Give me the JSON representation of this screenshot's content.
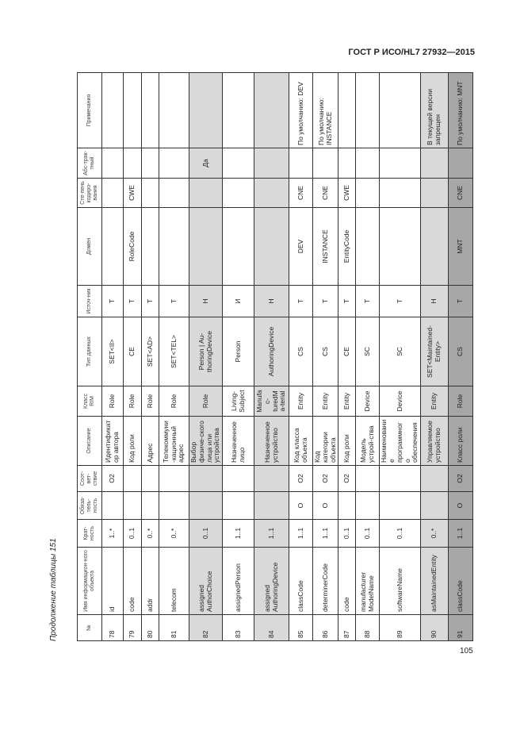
{
  "header": {
    "title": "ГОСТ Р ИСО/HL7 27932—2015"
  },
  "caption": "Продолжение таблицы 151",
  "table": {
    "columns": [
      "№",
      "Имя информацион-ного объекта",
      "Крат-ность",
      "Обяза-тель-ность",
      "Соот-вет-ствие",
      "Описание",
      "Класс RIM",
      "Тип данных",
      "Источ-ник",
      "Домен",
      "Сте-пень кодиро-вания",
      "Абс-трак-тный",
      "Примечания"
    ],
    "rows": [
      [
        "78",
        "id",
        "1..*",
        null,
        "O2",
        "Идентификатор автора",
        "Role",
        "SET<II>",
        "Т",
        null,
        null,
        null,
        null
      ],
      [
        "79",
        "code",
        "0..1",
        null,
        null,
        "Код роли",
        "Role",
        "CE",
        "Т",
        "RoleCode",
        "CWE",
        null,
        null
      ],
      [
        "80",
        "addr",
        "0..*",
        null,
        null,
        "Адрес",
        "Role",
        "SET<AD>",
        "Т",
        null,
        null,
        null,
        null
      ],
      [
        "81",
        "telecom",
        "0..*",
        null,
        null,
        "Телекоммуни-кационный адрес",
        "Role",
        "SET<TEL>",
        "Т",
        null,
        null,
        null,
        null
      ],
      [
        "82",
        "assigned AuthorChoice",
        "0..1",
        null,
        null,
        "Выбор физиче-ского лица или устройства",
        "Role",
        "Person | Au-thoringDevice",
        "Н",
        null,
        null,
        "Да",
        null
      ],
      [
        "83",
        "assignedPerson",
        "1..1",
        null,
        null,
        "Назначенное лицо",
        "Living-Subject",
        "Person",
        "И",
        null,
        null,
        null,
        null
      ],
      [
        "84",
        "assigned AuthoringDevice",
        "1..1",
        null,
        null,
        "Назначенное устройство",
        "Manufac-turedMa-terial",
        "AuthoringDevice",
        "Н",
        null,
        null,
        null,
        null
      ],
      [
        "85",
        "classCode",
        "1..1",
        "О",
        "O2",
        "Код класса объекта",
        "Entity",
        "CS",
        "Т",
        "DEV",
        "CNE",
        null,
        "По умолчанию: DEV"
      ],
      [
        "86",
        "determinerCode",
        "1..1",
        "О",
        "O2",
        "Код категории объекта",
        "Entity",
        "CS",
        "Т",
        "INSTANCE",
        "CNE",
        null,
        "По умолчанию: INSTANCE"
      ],
      [
        "87",
        "code",
        "0..1",
        null,
        "O2",
        "Код роли",
        "Entity",
        "CE",
        "Т",
        "EntityCode",
        "CWE",
        null,
        null
      ],
      [
        "88",
        "manufacturer ModelName",
        "0..1",
        null,
        null,
        "Модель устрой-ства",
        "Device",
        "SC",
        "Т",
        null,
        null,
        null,
        null
      ],
      [
        "89",
        "softwareName",
        "0..1",
        null,
        null,
        "Наименование программного обеспечения",
        "Device",
        "SC",
        "Т",
        null,
        null,
        null,
        null
      ],
      [
        "90",
        "asMaintainedEntity",
        "0..*",
        null,
        null,
        "Управляемое устройство",
        "Entity",
        "SET<Maintained-Entity>",
        "Н",
        null,
        null,
        null,
        "В текущей версии запрещен"
      ],
      [
        "91",
        "classCode",
        "1..1",
        "О",
        "O2",
        "Класс роли",
        "Role",
        "CS",
        "Т",
        "MNT",
        "CNE",
        null,
        "По умолчанию: MNT"
      ]
    ]
  },
  "page_number": "105"
}
